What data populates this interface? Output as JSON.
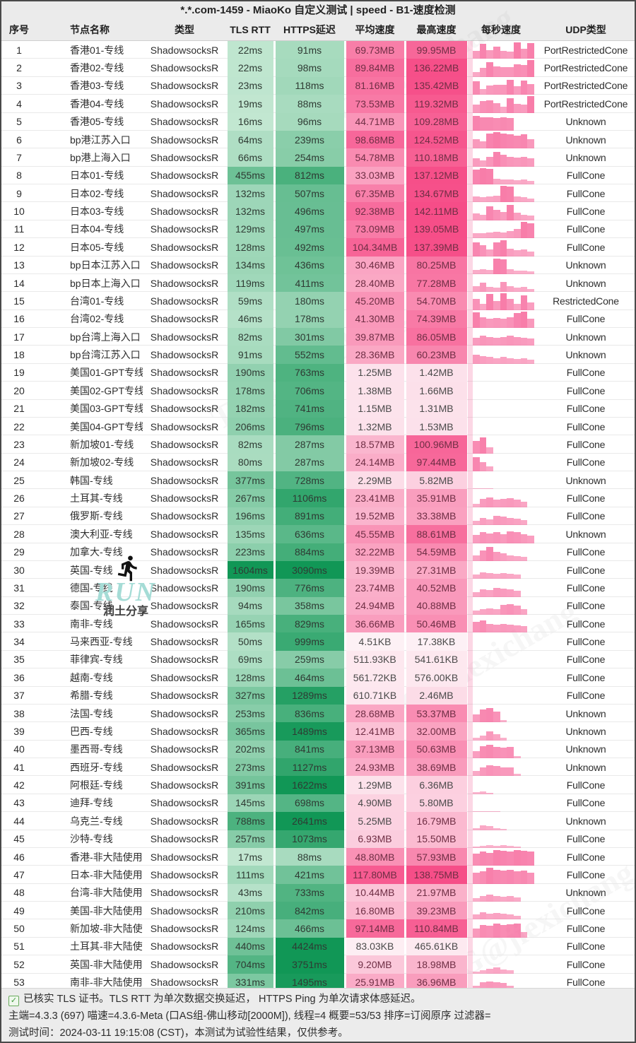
{
  "title": "*.*.com-1459 - MiaoKo 自定义测试 | speed - B1-速度检测",
  "columns": [
    "序号",
    "节点名称",
    "类型",
    "TLS RTT",
    "HTTPS延迟",
    "平均速度",
    "最高速度",
    "每秒速度",
    "UDP类型"
  ],
  "colors": {
    "green_light": "#d6f0df",
    "green_dark": "#119756",
    "pink_light": "#fdf2f6",
    "pink_dark": "#f64d88",
    "spark_bar": "#f65c94",
    "header_bg": "#ebebeb"
  },
  "rows": [
    {
      "no": 1,
      "name": "香港01-专线",
      "type": "ShadowsocksR",
      "tls": "22ms",
      "https": "91ms",
      "avg": "69.73MB",
      "max": "99.95MB",
      "udp": "PortRestrictedCone",
      "spark": [
        0.5,
        0.9,
        0.55,
        0.75,
        0.5,
        0.45,
        1,
        0.6,
        0.95
      ]
    },
    {
      "no": 2,
      "name": "香港02-专线",
      "type": "ShadowsocksR",
      "tls": "22ms",
      "https": "98ms",
      "avg": "89.84MB",
      "max": "136.22MB",
      "udp": "PortRestrictedCone",
      "spark": [
        0.3,
        0.55,
        0.9,
        0.65,
        0.6,
        0.6,
        0.75,
        0.7,
        1
      ]
    },
    {
      "no": 3,
      "name": "香港03-专线",
      "type": "ShadowsocksR",
      "tls": "23ms",
      "https": "118ms",
      "avg": "81.16MB",
      "max": "135.42MB",
      "udp": "PortRestrictedCone",
      "spark": [
        0.8,
        0.35,
        0.55,
        0.6,
        0.6,
        0.9,
        0.5,
        0.85,
        0.65
      ]
    },
    {
      "no": 4,
      "name": "香港04-专线",
      "type": "ShadowsocksR",
      "tls": "19ms",
      "https": "88ms",
      "avg": "73.53MB",
      "max": "119.32MB",
      "udp": "PortRestrictedCone",
      "spark": [
        0.5,
        0.7,
        0.75,
        0.6,
        0.35,
        0.9,
        0.55,
        0.5,
        1
      ]
    },
    {
      "no": 5,
      "name": "香港05-专线",
      "type": "ShadowsocksR",
      "tls": "16ms",
      "https": "96ms",
      "avg": "44.71MB",
      "max": "109.28MB",
      "udp": "Unknown",
      "spark": [
        0.9,
        0.8,
        0.8,
        0.75,
        0.8,
        0.75,
        0,
        0,
        0
      ]
    },
    {
      "no": 6,
      "name": "bp港江苏入口",
      "type": "ShadowsocksR",
      "tls": "64ms",
      "https": "239ms",
      "avg": "98.68MB",
      "max": "124.52MB",
      "udp": "Unknown",
      "spark": [
        0.55,
        0.45,
        0.9,
        1,
        0.9,
        0.85,
        0.8,
        0.85,
        0.55
      ]
    },
    {
      "no": 7,
      "name": "bp港上海入口",
      "type": "ShadowsocksR",
      "tls": "66ms",
      "https": "254ms",
      "avg": "54.78MB",
      "max": "110.18MB",
      "udp": "Unknown",
      "spark": [
        0.5,
        0.35,
        0.6,
        0.9,
        0.7,
        0.6,
        0.55,
        0.6,
        0.5
      ]
    },
    {
      "no": 8,
      "name": "日本01-专线",
      "type": "ShadowsocksR",
      "tls": "455ms",
      "https": "812ms",
      "avg": "33.03MB",
      "max": "137.12MB",
      "udp": "FullCone",
      "spark": [
        0.9,
        1,
        0.95,
        0.35,
        0.3,
        0.3,
        0.25,
        0.3,
        0.2
      ]
    },
    {
      "no": 9,
      "name": "日本02-专线",
      "type": "ShadowsocksR",
      "tls": "132ms",
      "https": "507ms",
      "avg": "67.35MB",
      "max": "134.67MB",
      "udp": "FullCone",
      "spark": [
        0.35,
        0.3,
        0.35,
        0.4,
        1,
        0.95,
        0.35,
        0.3,
        0.25
      ]
    },
    {
      "no": 10,
      "name": "日本03-专线",
      "type": "ShadowsocksR",
      "tls": "132ms",
      "https": "496ms",
      "avg": "92.38MB",
      "max": "142.11MB",
      "udp": "FullCone",
      "spark": [
        0.4,
        0.35,
        0.85,
        0.65,
        0.5,
        0.95,
        0.45,
        0.35,
        0.3
      ]
    },
    {
      "no": 11,
      "name": "日本04-专线",
      "type": "ShadowsocksR",
      "tls": "129ms",
      "https": "497ms",
      "avg": "73.09MB",
      "max": "139.05MB",
      "udp": "FullCone",
      "spark": [
        0.3,
        0.3,
        0.35,
        0.4,
        0.35,
        0.45,
        0.55,
        1,
        0.9
      ]
    },
    {
      "no": 12,
      "name": "日本05-专线",
      "type": "ShadowsocksR",
      "tls": "128ms",
      "https": "492ms",
      "avg": "104.34MB",
      "max": "137.39MB",
      "udp": "FullCone",
      "spark": [
        0.85,
        0.65,
        0.4,
        0.85,
        0.95,
        0.45,
        0.35,
        0.4,
        0.3
      ]
    },
    {
      "no": 13,
      "name": "bp日本江苏入口",
      "type": "ShadowsocksR",
      "tls": "134ms",
      "https": "436ms",
      "avg": "30.46MB",
      "max": "80.25MB",
      "udp": "Unknown",
      "spark": [
        0.25,
        0.3,
        0.25,
        0.95,
        0.9,
        0.3,
        0.2,
        0.2,
        0.15
      ]
    },
    {
      "no": 14,
      "name": "bp日本上海入口",
      "type": "ShadowsocksR",
      "tls": "119ms",
      "https": "411ms",
      "avg": "28.40MB",
      "max": "77.28MB",
      "udp": "Unknown",
      "spark": [
        0.35,
        0.55,
        0.3,
        0.25,
        0.6,
        0.35,
        0.25,
        0.3,
        0.2
      ]
    },
    {
      "no": 15,
      "name": "台湾01-专线",
      "type": "ShadowsocksR",
      "tls": "59ms",
      "https": "180ms",
      "avg": "45.20MB",
      "max": "54.70MB",
      "udp": "RestrictedCone",
      "spark": [
        0.65,
        0.35,
        0.95,
        0.55,
        1,
        0.65,
        0.35,
        0.9,
        0.45
      ]
    },
    {
      "no": 16,
      "name": "台湾02-专线",
      "type": "ShadowsocksR",
      "tls": "46ms",
      "https": "178ms",
      "avg": "41.30MB",
      "max": "74.39MB",
      "udp": "FullCone",
      "spark": [
        0.95,
        0.65,
        0.55,
        0.6,
        0.55,
        0.65,
        0.9,
        1,
        0.55
      ]
    },
    {
      "no": 17,
      "name": "bp台湾上海入口",
      "type": "ShadowsocksR",
      "tls": "82ms",
      "https": "301ms",
      "avg": "39.87MB",
      "max": "86.05MB",
      "udp": "Unknown",
      "spark": [
        0.5,
        0.6,
        0.55,
        0.5,
        0.55,
        0.6,
        0.55,
        0.5,
        0.45
      ]
    },
    {
      "no": 18,
      "name": "bp台湾江苏入口",
      "type": "ShadowsocksR",
      "tls": "91ms",
      "https": "552ms",
      "avg": "28.36MB",
      "max": "60.23MB",
      "udp": "Unknown",
      "spark": [
        0.55,
        0.45,
        0.4,
        0.35,
        0.4,
        0.35,
        0.3,
        0.35,
        0.25
      ]
    },
    {
      "no": 19,
      "name": "美国01-GPT专线",
      "type": "ShadowsocksR",
      "tls": "190ms",
      "https": "763ms",
      "avg": "1.25MB",
      "max": "1.42MB",
      "udp": "FullCone",
      "spark": []
    },
    {
      "no": 20,
      "name": "美国02-GPT专线",
      "type": "ShadowsocksR",
      "tls": "178ms",
      "https": "706ms",
      "avg": "1.38MB",
      "max": "1.66MB",
      "udp": "FullCone",
      "spark": []
    },
    {
      "no": 21,
      "name": "美国03-GPT专线",
      "type": "ShadowsocksR",
      "tls": "182ms",
      "https": "741ms",
      "avg": "1.15MB",
      "max": "1.31MB",
      "udp": "FullCone",
      "spark": []
    },
    {
      "no": 22,
      "name": "美国04-GPT专线",
      "type": "ShadowsocksR",
      "tls": "206ms",
      "https": "796ms",
      "avg": "1.32MB",
      "max": "1.53MB",
      "udp": "FullCone",
      "spark": []
    },
    {
      "no": 23,
      "name": "新加坡01-专线",
      "type": "ShadowsocksR",
      "tls": "82ms",
      "https": "287ms",
      "avg": "18.57MB",
      "max": "100.96MB",
      "udp": "FullCone",
      "spark": [
        0.75,
        0.95,
        0.35,
        0,
        0,
        0,
        0,
        0,
        0
      ]
    },
    {
      "no": 24,
      "name": "新加坡02-专线",
      "type": "ShadowsocksR",
      "tls": "80ms",
      "https": "287ms",
      "avg": "24.14MB",
      "max": "97.44MB",
      "udp": "FullCone",
      "spark": [
        0.85,
        0.55,
        0.3,
        0,
        0,
        0,
        0,
        0,
        0
      ]
    },
    {
      "no": 25,
      "name": "韩国-专线",
      "type": "ShadowsocksR",
      "tls": "377ms",
      "https": "728ms",
      "avg": "2.29MB",
      "max": "5.82MB",
      "udp": "Unknown",
      "spark": [
        0.06,
        0.06,
        0.04,
        0,
        0,
        0,
        0,
        0,
        0
      ]
    },
    {
      "no": 26,
      "name": "土耳其-专线",
      "type": "ShadowsocksR",
      "tls": "267ms",
      "https": "1106ms",
      "avg": "23.41MB",
      "max": "35.91MB",
      "udp": "FullCone",
      "spark": [
        0.2,
        0.5,
        0.6,
        0.45,
        0.5,
        0.55,
        0.45,
        0.35,
        0
      ]
    },
    {
      "no": 27,
      "name": "俄罗斯-专线",
      "type": "ShadowsocksR",
      "tls": "196ms",
      "https": "891ms",
      "avg": "19.52MB",
      "max": "33.38MB",
      "udp": "FullCone",
      "spark": [
        0.25,
        0.45,
        0.35,
        0.55,
        0.5,
        0.45,
        0.4,
        0.3,
        0
      ]
    },
    {
      "no": 28,
      "name": "澳大利亚-专线",
      "type": "ShadowsocksR",
      "tls": "135ms",
      "https": "636ms",
      "avg": "45.55MB",
      "max": "88.61MB",
      "udp": "Unknown",
      "spark": [
        0.5,
        0.65,
        0.6,
        0.65,
        0.55,
        0.7,
        0.65,
        0.55,
        0.45
      ]
    },
    {
      "no": 29,
      "name": "加拿大-专线",
      "type": "ShadowsocksR",
      "tls": "223ms",
      "https": "884ms",
      "avg": "32.22MB",
      "max": "54.59MB",
      "udp": "FullCone",
      "spark": [
        0.35,
        0.65,
        0.85,
        0.55,
        0.45,
        0.35,
        0.3,
        0.25,
        0
      ]
    },
    {
      "no": 30,
      "name": "英国-专线",
      "type": "ShadowsocksR",
      "tls": "1604ms",
      "https": "3090ms",
      "avg": "19.39MB",
      "max": "27.31MB",
      "udp": "FullCone",
      "spark": [
        0.25,
        0.4,
        0.35,
        0.3,
        0.35,
        0.3,
        0.25,
        0,
        0
      ]
    },
    {
      "no": 31,
      "name": "德国-专线",
      "type": "ShadowsocksR",
      "tls": "190ms",
      "https": "776ms",
      "avg": "23.74MB",
      "max": "40.52MB",
      "udp": "FullCone",
      "spark": [
        0.3,
        0.45,
        0.4,
        0.55,
        0.5,
        0.45,
        0.35,
        0,
        0
      ]
    },
    {
      "no": 32,
      "name": "泰国-专线",
      "type": "ShadowsocksR",
      "tls": "94ms",
      "https": "358ms",
      "avg": "24.94MB",
      "max": "40.88MB",
      "udp": "FullCone",
      "spark": [
        0.25,
        0.35,
        0.4,
        0.35,
        0.6,
        0.65,
        0.55,
        0.35,
        0
      ]
    },
    {
      "no": 33,
      "name": "南非-专线",
      "type": "ShadowsocksR",
      "tls": "165ms",
      "https": "829ms",
      "avg": "36.66MB",
      "max": "50.46MB",
      "udp": "FullCone",
      "spark": [
        0.65,
        0.75,
        0.55,
        0.5,
        0.55,
        0.5,
        0.45,
        0.4,
        0
      ]
    },
    {
      "no": 34,
      "name": "马来西亚-专线",
      "type": "ShadowsocksR",
      "tls": "50ms",
      "https": "999ms",
      "avg": "4.51KB",
      "max": "17.38KB",
      "udp": "FullCone",
      "spark": []
    },
    {
      "no": 35,
      "name": "菲律宾-专线",
      "type": "ShadowsocksR",
      "tls": "69ms",
      "https": "259ms",
      "avg": "511.93KB",
      "max": "541.61KB",
      "udp": "FullCone",
      "spark": []
    },
    {
      "no": 36,
      "name": "越南-专线",
      "type": "ShadowsocksR",
      "tls": "128ms",
      "https": "464ms",
      "avg": "561.72KB",
      "max": "576.00KB",
      "udp": "FullCone",
      "spark": []
    },
    {
      "no": 37,
      "name": "希腊-专线",
      "type": "ShadowsocksR",
      "tls": "327ms",
      "https": "1289ms",
      "avg": "610.71KB",
      "max": "2.46MB",
      "udp": "FullCone",
      "spark": []
    },
    {
      "no": 38,
      "name": "法国-专线",
      "type": "ShadowsocksR",
      "tls": "253ms",
      "https": "836ms",
      "avg": "28.68MB",
      "max": "53.37MB",
      "udp": "Unknown",
      "spark": [
        0.5,
        0.8,
        0.85,
        0.65,
        0.15,
        0,
        0,
        0,
        0
      ]
    },
    {
      "no": 39,
      "name": "巴西-专线",
      "type": "ShadowsocksR",
      "tls": "365ms",
      "https": "1489ms",
      "avg": "12.41MB",
      "max": "32.00MB",
      "udp": "Unknown",
      "spark": [
        0.15,
        0.3,
        0.55,
        0.35,
        0.15,
        0,
        0,
        0,
        0
      ]
    },
    {
      "no": 40,
      "name": "墨西哥-专线",
      "type": "ShadowsocksR",
      "tls": "202ms",
      "https": "841ms",
      "avg": "37.13MB",
      "max": "50.63MB",
      "udp": "Unknown",
      "spark": [
        0.45,
        0.75,
        0.8,
        0.7,
        0.65,
        0.7,
        0.15,
        0,
        0
      ]
    },
    {
      "no": 41,
      "name": "西班牙-专线",
      "type": "ShadowsocksR",
      "tls": "273ms",
      "https": "1127ms",
      "avg": "24.93MB",
      "max": "38.69MB",
      "udp": "Unknown",
      "spark": [
        0.3,
        0.55,
        0.65,
        0.6,
        0.55,
        0.55,
        0.15,
        0,
        0
      ]
    },
    {
      "no": 42,
      "name": "阿根廷-专线",
      "type": "ShadowsocksR",
      "tls": "391ms",
      "https": "1622ms",
      "avg": "1.29MB",
      "max": "6.36MB",
      "udp": "FullCone",
      "spark": [
        0.1,
        0.15,
        0.08,
        0,
        0,
        0,
        0,
        0,
        0
      ]
    },
    {
      "no": 43,
      "name": "迪拜-专线",
      "type": "ShadowsocksR",
      "tls": "145ms",
      "https": "698ms",
      "avg": "4.90MB",
      "max": "5.80MB",
      "udp": "FullCone",
      "spark": [
        0.06,
        0.06,
        0.06,
        0.05,
        0,
        0,
        0,
        0,
        0
      ]
    },
    {
      "no": 44,
      "name": "乌克兰-专线",
      "type": "ShadowsocksR",
      "tls": "788ms",
      "https": "2641ms",
      "avg": "5.25MB",
      "max": "16.79MB",
      "udp": "Unknown",
      "spark": [
        0.12,
        0.3,
        0.22,
        0.12,
        0.06,
        0,
        0,
        0,
        0
      ]
    },
    {
      "no": 45,
      "name": "沙特-专线",
      "type": "ShadowsocksR",
      "tls": "257ms",
      "https": "1073ms",
      "avg": "6.93MB",
      "max": "15.50MB",
      "udp": "FullCone",
      "spark": [
        0.1,
        0.12,
        0.15,
        0.12,
        0.18,
        0.12,
        0.1,
        0,
        0
      ]
    },
    {
      "no": 46,
      "name": "香港-非大陆使用",
      "type": "ShadowsocksR",
      "tls": "17ms",
      "https": "88ms",
      "avg": "48.80MB",
      "max": "57.93MB",
      "udp": "FullCone",
      "spark": [
        0.75,
        0.85,
        0.8,
        0.95,
        0.9,
        0.85,
        0.95,
        0.9,
        0.85
      ]
    },
    {
      "no": 47,
      "name": "日本-非大陆使用",
      "type": "ShadowsocksR",
      "tls": "111ms",
      "https": "421ms",
      "avg": "117.80MB",
      "max": "138.75MB",
      "udp": "FullCone",
      "spark": [
        0.65,
        0.75,
        0.95,
        0.85,
        0.8,
        0.85,
        0.75,
        0.8,
        0.65
      ]
    },
    {
      "no": 48,
      "name": "台湾-非大陆使用",
      "type": "ShadowsocksR",
      "tls": "43ms",
      "https": "733ms",
      "avg": "10.44MB",
      "max": "21.97MB",
      "udp": "Unknown",
      "spark": [
        0.2,
        0.35,
        0.45,
        0.35,
        0.3,
        0.35,
        0.25,
        0,
        0
      ]
    },
    {
      "no": 49,
      "name": "美国-非大陆使用",
      "type": "ShadowsocksR",
      "tls": "210ms",
      "https": "842ms",
      "avg": "16.80MB",
      "max": "39.23MB",
      "udp": "FullCone",
      "spark": [
        0.3,
        0.45,
        0.35,
        0.4,
        0.35,
        0.3,
        0.25,
        0,
        0
      ]
    },
    {
      "no": 50,
      "name": "新加坡-非大陆使用",
      "type": "ShadowsocksR",
      "tls": "124ms",
      "https": "466ms",
      "avg": "97.14MB",
      "max": "110.84MB",
      "udp": "FullCone",
      "spark": [
        0.55,
        0.75,
        0.7,
        0.85,
        0.75,
        0.8,
        0.85,
        0.35,
        0
      ]
    },
    {
      "no": 51,
      "name": "土耳其-非大陆使用",
      "type": "ShadowsocksR",
      "tls": "440ms",
      "https": "4424ms",
      "avg": "83.03KB",
      "max": "465.61KB",
      "udp": "FullCone",
      "spark": []
    },
    {
      "no": 52,
      "name": "英国-非大陆使用",
      "type": "ShadowsocksR",
      "tls": "704ms",
      "https": "3751ms",
      "avg": "9.20MB",
      "max": "18.98MB",
      "udp": "FullCone",
      "spark": [
        0.12,
        0.18,
        0.3,
        0.35,
        0.25,
        0.18,
        0,
        0,
        0
      ]
    },
    {
      "no": 53,
      "name": "南非-非大陆使用",
      "type": "ShadowsocksR",
      "tls": "331ms",
      "https": "1495ms",
      "avg": "25.91MB",
      "max": "36.96MB",
      "udp": "FullCone",
      "spark": [
        0.35,
        0.55,
        0.6,
        0.55,
        0.5,
        0.35,
        0,
        0,
        0
      ]
    }
  ],
  "watermark": {
    "run_label": "RUN",
    "share_label": "润土分享",
    "tg_text": "TG@jiexichang"
  },
  "footer": {
    "verified": "已核实 TLS 证书。TLS RTT 为单次数据交换延迟， HTTPS Ping 为单次请求体感延迟。",
    "meta": "主端=4.3.3 (697) 喵速=4.3.6-Meta (口AS组-佛山移动[2000M]), 线程=4 概要=53/53 排序=订阅原序 过滤器=",
    "time": "测试时间：2024-03-11 19:15:08 (CST)，本测试为试验性结果，仅供参考。"
  }
}
